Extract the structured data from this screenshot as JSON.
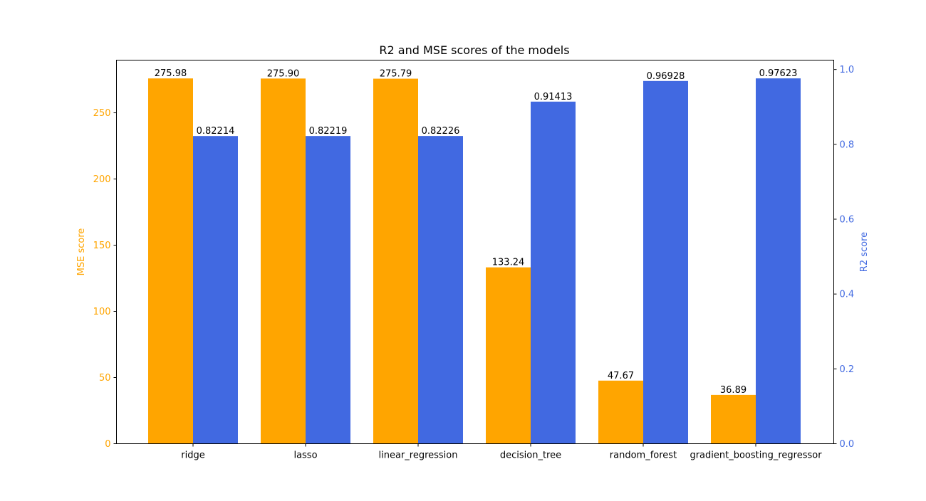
{
  "chart_data": {
    "type": "bar",
    "title": "R2 and MSE scores of the models",
    "categories": [
      "ridge",
      "lasso",
      "linear_regression",
      "decision_tree",
      "random_forest",
      "gradient_boosting_regressor"
    ],
    "series": [
      {
        "name": "MSE score",
        "axis": "left",
        "color": "#FFA500",
        "values": [
          275.98,
          275.9,
          275.79,
          133.24,
          47.67,
          36.89
        ],
        "labels": [
          "275.98",
          "275.90",
          "275.79",
          "133.24",
          "47.67",
          "36.89"
        ]
      },
      {
        "name": "R2 score",
        "axis": "right",
        "color": "#4169E1",
        "values": [
          0.82214,
          0.82219,
          0.82226,
          0.91413,
          0.96928,
          0.97623
        ],
        "labels": [
          "0.82214",
          "0.82219",
          "0.82226",
          "0.91413",
          "0.96928",
          "0.97623"
        ]
      }
    ],
    "y_left": {
      "label": "MSE score",
      "color": "#FFA500",
      "range": [
        0,
        289.8
      ],
      "ticks": [
        0,
        50,
        100,
        150,
        200,
        250
      ],
      "tick_labels": [
        "0",
        "50",
        "100",
        "150",
        "200",
        "250"
      ]
    },
    "y_right": {
      "label": "R2 score",
      "color": "#4169E1",
      "range": [
        0,
        1.025
      ],
      "ticks": [
        0.0,
        0.2,
        0.4,
        0.6,
        0.8,
        1.0
      ],
      "tick_labels": [
        "0.0",
        "0.2",
        "0.4",
        "0.6",
        "0.8",
        "1.0"
      ]
    },
    "grid": false,
    "legend": "none"
  }
}
